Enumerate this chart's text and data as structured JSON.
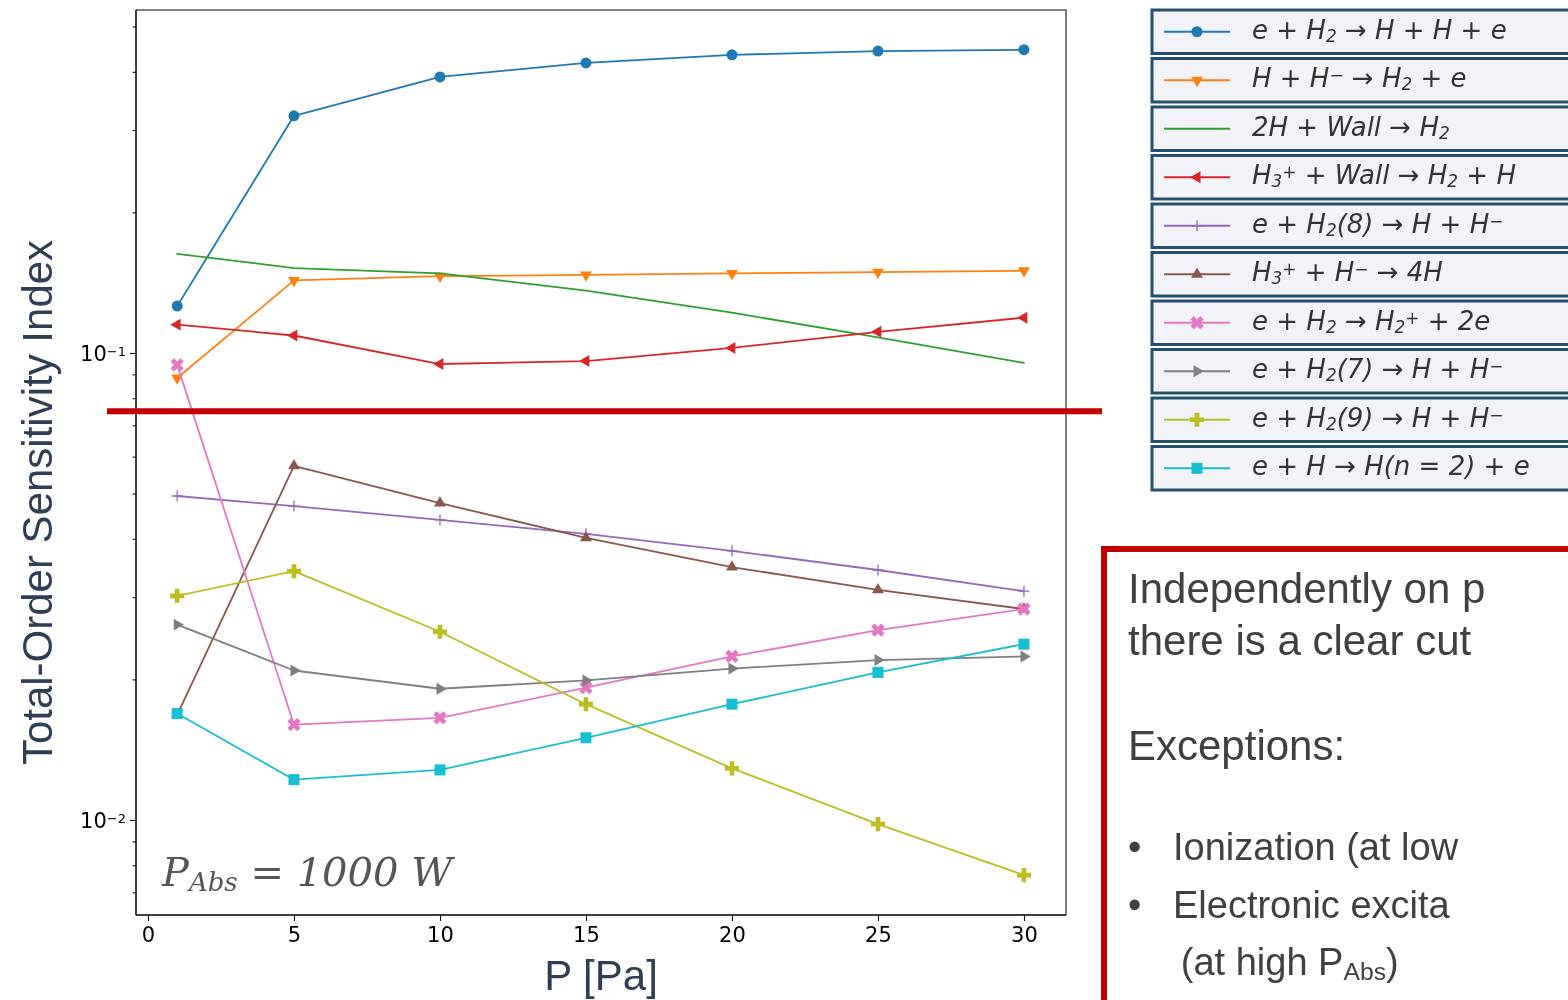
{
  "chart_data": {
    "type": "line",
    "xlabel": "P [Pa]",
    "ylabel": "Total-Order Sensitivity Index",
    "log": "y",
    "xlim": [
      -0.41,
      31.44
    ],
    "ylim": [
      0.00626,
      0.5425
    ],
    "xticks": [
      0,
      5,
      10,
      15,
      20,
      25,
      30
    ],
    "yticks": [
      {
        "value": 0.007,
        "label": null
      },
      {
        "value": 0.008,
        "label": null
      },
      {
        "value": 0.009,
        "label": null
      },
      {
        "value": 0.01,
        "label": "10$^{−2}$"
      },
      {
        "value": 0.02,
        "label": null
      },
      {
        "value": 0.03,
        "label": null
      },
      {
        "value": 0.04,
        "label": null
      },
      {
        "value": 0.05,
        "label": null
      },
      {
        "value": 0.06,
        "label": null
      },
      {
        "value": 0.07,
        "label": null
      },
      {
        "value": 0.08,
        "label": null
      },
      {
        "value": 0.09,
        "label": null
      },
      {
        "value": 0.1,
        "label": "10$^{−1}$"
      },
      {
        "value": 0.2,
        "label": null
      },
      {
        "value": 0.3,
        "label": null
      },
      {
        "value": 0.4,
        "label": null
      },
      {
        "value": 0.5,
        "label": null
      }
    ],
    "grid": false,
    "legend": "right",
    "line_style": "solid",
    "x": [
      1,
      5,
      10,
      15,
      20,
      25,
      30
    ],
    "series": [
      {
        "name": "e + H$_{2}$ → H + H + e",
        "color": "#1f77b4",
        "marker": "circle",
        "values": [
          0.126,
          0.322,
          0.39,
          0.418,
          0.435,
          0.443,
          0.446
        ]
      },
      {
        "name": "H + H$^{−}$ → H$_{2}$ + e",
        "color": "#ff7f0e",
        "marker": "triangle-down",
        "values": [
          0.0884,
          0.143,
          0.146,
          0.147,
          0.148,
          0.149,
          0.15
        ]
      },
      {
        "name": "2H + Wall → H$_{2}$",
        "color": "#2ca02c",
        "values": [
          0.163,
          0.152,
          0.148,
          0.136,
          0.122,
          0.108,
          0.0952
        ]
      },
      {
        "name": "H$_{3}$$^{+}$ + Wall → H$_{2}$ + H",
        "color": "#d62728",
        "marker": "triangle-left",
        "values": [
          0.115,
          0.109,
          0.0947,
          0.0961,
          0.1025,
          0.111,
          0.119
        ]
      },
      {
        "name": "e + H$_{2}$(8) → H + H$^{−}$",
        "color": "#9467bd",
        "marker": "plus",
        "values": [
          0.0494,
          0.047,
          0.0439,
          0.041,
          0.0377,
          0.0343,
          0.0309
        ]
      },
      {
        "name": "H$_{3}$$^{+}$ + H$^{−}$ → 4H",
        "color": "#8c564b",
        "marker": "triangle",
        "values": [
          0.0168,
          0.0573,
          0.0477,
          0.0402,
          0.0348,
          0.0311,
          0.0283
        ]
      },
      {
        "name": "e + H$_{2}$ → H$_{2}$$^{+}$ + 2e",
        "color": "#e377c2",
        "marker": "x",
        "values": [
          0.0943,
          0.016,
          0.01654,
          0.0192,
          0.0224,
          0.0255,
          0.0283
        ]
      },
      {
        "name": "e + H$_{2}$(7) → H + H$^{−}$",
        "color": "#7f7f7f",
        "marker": "triangle-right",
        "values": [
          0.0262,
          0.0209,
          0.0191,
          0.0199,
          0.0211,
          0.022,
          0.0224
        ]
      },
      {
        "name": "e + H$_{2}$(9) → H + H$^{−}$",
        "color": "#bcbd22",
        "marker": "cross",
        "values": [
          0.0302,
          0.0341,
          0.0253,
          0.0177,
          0.0129,
          0.0098,
          0.00762
        ]
      },
      {
        "name": "e + H → H(n = 2) + e",
        "color": "#17becf",
        "marker": "square",
        "values": [
          0.0169,
          0.0122,
          0.0128,
          0.015,
          0.0177,
          0.0207,
          0.0238
        ]
      }
    ],
    "ref_lines": [
      {
        "axis": "y",
        "value": 0.075,
        "color": "#c00000",
        "line_style": "solid"
      }
    ],
    "annotations": [
      "P$_{Abs}$ = 1000 W",
      "Independently on p",
      "there is a clear cut",
      "Exceptions:",
      "•   Ionization (at low",
      "•   Electronic excita",
      "     (at high P$_{Abs}$)"
    ]
  }
}
